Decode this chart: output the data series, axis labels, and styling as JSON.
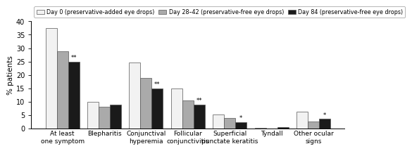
{
  "categories": [
    "At least\none symptom",
    "Blepharitis",
    "Conjunctival\nhyperemia",
    "Follicular\nconjunctivitis",
    "Superficial\npunctate keratitis",
    "Tyndall",
    "Other ocular\nsigns"
  ],
  "day0": [
    37.5,
    9.8,
    24.5,
    15.0,
    5.2,
    0.3,
    6.2
  ],
  "day28": [
    28.8,
    8.0,
    18.8,
    10.5,
    4.0,
    0.0,
    2.5
  ],
  "day84": [
    25.0,
    9.0,
    15.0,
    8.8,
    2.3,
    0.4,
    3.5
  ],
  "colors": [
    "#f2f2f2",
    "#aaaaaa",
    "#1a1a1a"
  ],
  "edgecolor": "#555555",
  "ylabel": "% patients",
  "ylim": [
    0,
    40
  ],
  "yticks": [
    0,
    5,
    10,
    15,
    20,
    25,
    30,
    35,
    40
  ],
  "legend_labels": [
    "Day 0 (preservative-added eye drops)",
    "Day 28–42 (preservative-free eye drops)",
    "Day 84 (preservative-free eye drops)"
  ],
  "ann_map": {
    "0": "**",
    "2": "**",
    "3": "**",
    "4": "*",
    "6": "*"
  },
  "bar_width": 0.27
}
